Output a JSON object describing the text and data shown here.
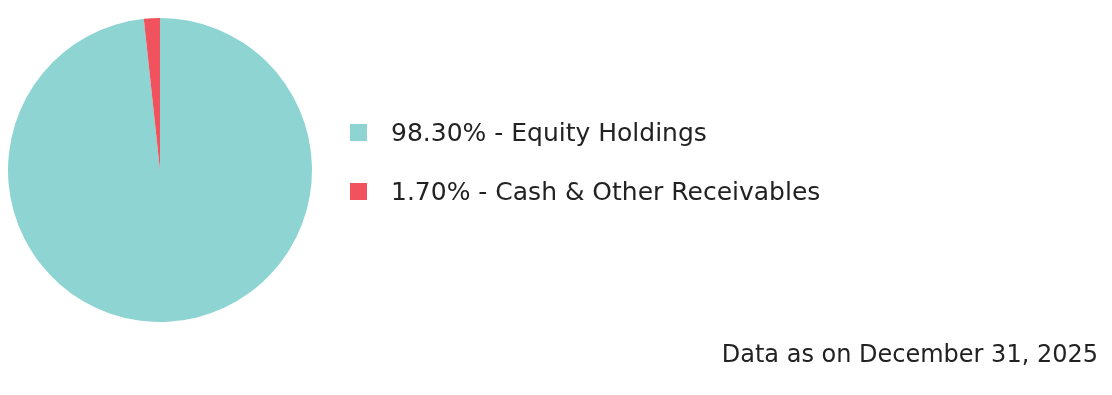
{
  "chart_data": {
    "type": "pie",
    "categories": [
      "98.30% - Equity Holdings",
      "1.70% - Cash & Other Receivables"
    ],
    "values": [
      98.3,
      1.7
    ],
    "colors": [
      "#8ed4d2",
      "#f0535e"
    ],
    "legend": "right",
    "annotations": [
      "Data as on December 31, 2025"
    ]
  }
}
